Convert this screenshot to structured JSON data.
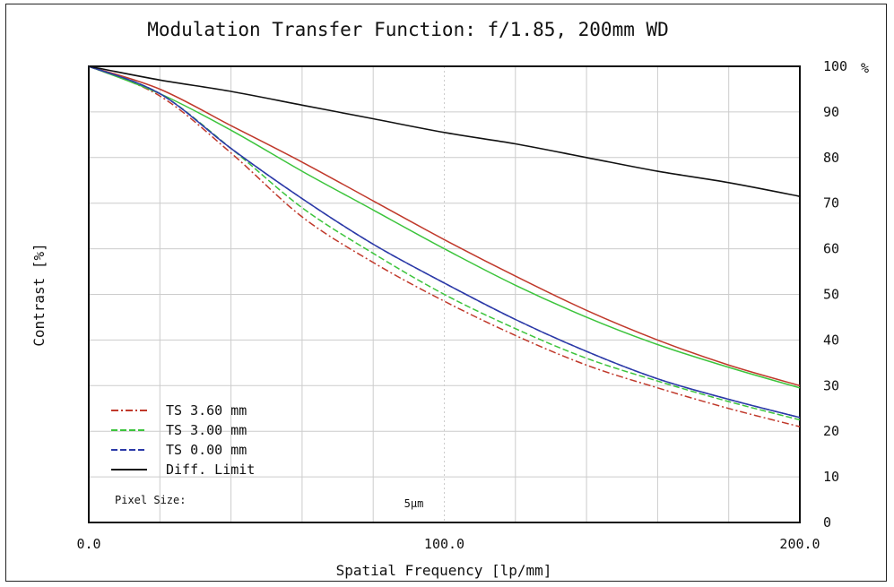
{
  "chart_data": {
    "type": "line",
    "title": "Modulation Transfer Function: f/1.85, 200mm WD",
    "xlabel": "Spatial Frequency [lp/mm]",
    "ylabel": "Contrast [%]",
    "y_unit": "%",
    "xlim": [
      0,
      200
    ],
    "ylim": [
      0,
      100
    ],
    "x_ticks": [
      "0.0",
      "100.0",
      "200.0"
    ],
    "y_ticks": [
      "0",
      "10",
      "20",
      "30",
      "40",
      "50",
      "60",
      "70",
      "80",
      "90",
      "100"
    ],
    "grid": true,
    "legend_position": "bottom-left",
    "annotations": {
      "pixel_size_label": "Pixel Size:",
      "pixel_size_value": "5µm",
      "pixel_size_frequency": 100
    },
    "x": [
      0,
      20,
      40,
      60,
      80,
      100,
      120,
      140,
      160,
      180,
      200
    ],
    "series": [
      {
        "name": "TS 3.60 mm",
        "field": "tangential",
        "color": "#c0392b",
        "dash": "solid",
        "values": [
          100,
          95,
          87,
          79,
          70.5,
          62,
          54,
          46.5,
          40,
          34.5,
          30
        ]
      },
      {
        "name": "TS 3.60 mm",
        "field": "sagittal",
        "color": "#c0392b",
        "dash": "dashdot",
        "values": [
          100,
          93.5,
          81,
          67,
          57,
          48.5,
          41,
          34.5,
          29.5,
          25,
          21
        ]
      },
      {
        "name": "TS 3.00 mm",
        "field": "tangential",
        "color": "#3cc43c",
        "dash": "solid",
        "values": [
          100,
          94,
          86,
          77,
          68.5,
          60,
          52,
          45,
          39,
          34,
          29.5
        ]
      },
      {
        "name": "TS 3.00 mm",
        "field": "sagittal",
        "color": "#3cc43c",
        "dash": "dashed",
        "values": [
          100,
          94,
          82,
          69,
          59,
          50,
          42.5,
          36,
          31,
          26.5,
          22.5
        ]
      },
      {
        "name": "TS 0.00 mm",
        "field": "tangential",
        "color": "#2c3aa8",
        "dash": "solid",
        "values": [
          100,
          94,
          82,
          71,
          61,
          52.5,
          44.5,
          37.5,
          31.5,
          27,
          23
        ]
      },
      {
        "name": "TS 0.00 mm",
        "field": "sagittal",
        "color": "#2c3aa8",
        "dash": "dashed",
        "values": [
          100,
          94,
          82,
          71,
          61,
          52.5,
          44.5,
          37.5,
          31.5,
          27,
          23
        ]
      },
      {
        "name": "Diff. Limit",
        "field": "diffraction",
        "color": "#111111",
        "dash": "solid",
        "values": [
          100,
          97,
          94.5,
          91.5,
          88.5,
          85.5,
          83,
          80,
          77,
          74.5,
          71.5
        ]
      }
    ],
    "legend": [
      {
        "label": "TS 3.60 mm",
        "color": "#c0392b",
        "style": "dashdot"
      },
      {
        "label": "TS 3.00 mm",
        "color": "#3cc43c",
        "style": "dashed"
      },
      {
        "label": "TS 0.00 mm",
        "color": "#2c3aa8",
        "style": "dashed"
      },
      {
        "label": "Diff. Limit",
        "color": "#111111",
        "style": "solid"
      }
    ]
  }
}
